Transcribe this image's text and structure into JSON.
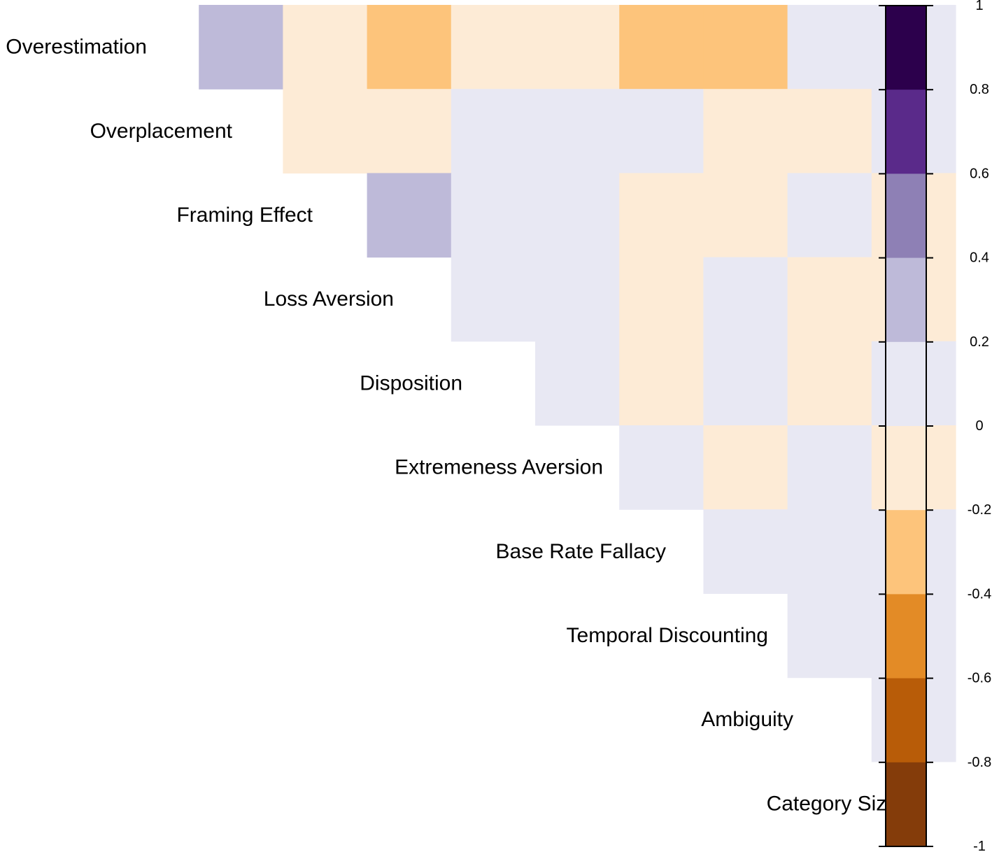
{
  "chart_data": {
    "type": "heatmap",
    "title": "",
    "variables": [
      "Overestimation",
      "Overplacement",
      "Framing Effect",
      "Loss Aversion",
      "Disposition",
      "Extremeness Aversion",
      "Base Rate Fallacy",
      "Temporal Discounting",
      "Ambiguity",
      "Category Size"
    ],
    "layout": "upper-triangle, diagonal cell holds the variable label",
    "cells": [
      {
        "row": 0,
        "col": 1,
        "value": 0.3
      },
      {
        "row": 0,
        "col": 2,
        "value": -0.1
      },
      {
        "row": 0,
        "col": 3,
        "value": -0.3
      },
      {
        "row": 0,
        "col": 4,
        "value": -0.1
      },
      {
        "row": 0,
        "col": 5,
        "value": -0.1
      },
      {
        "row": 0,
        "col": 6,
        "value": -0.3
      },
      {
        "row": 0,
        "col": 7,
        "value": -0.3
      },
      {
        "row": 0,
        "col": 8,
        "value": 0.1
      },
      {
        "row": 0,
        "col": 9,
        "value": 0.1
      },
      {
        "row": 1,
        "col": 2,
        "value": -0.1
      },
      {
        "row": 1,
        "col": 3,
        "value": -0.1
      },
      {
        "row": 1,
        "col": 4,
        "value": 0.1
      },
      {
        "row": 1,
        "col": 5,
        "value": 0.1
      },
      {
        "row": 1,
        "col": 6,
        "value": 0.1
      },
      {
        "row": 1,
        "col": 7,
        "value": -0.1
      },
      {
        "row": 1,
        "col": 8,
        "value": -0.1
      },
      {
        "row": 1,
        "col": 9,
        "value": 0.1
      },
      {
        "row": 2,
        "col": 3,
        "value": 0.3
      },
      {
        "row": 2,
        "col": 4,
        "value": 0.1
      },
      {
        "row": 2,
        "col": 5,
        "value": 0.1
      },
      {
        "row": 2,
        "col": 6,
        "value": -0.1
      },
      {
        "row": 2,
        "col": 7,
        "value": -0.1
      },
      {
        "row": 2,
        "col": 8,
        "value": 0.1
      },
      {
        "row": 2,
        "col": 9,
        "value": -0.1
      },
      {
        "row": 3,
        "col": 4,
        "value": 0.1
      },
      {
        "row": 3,
        "col": 5,
        "value": 0.1
      },
      {
        "row": 3,
        "col": 6,
        "value": -0.1
      },
      {
        "row": 3,
        "col": 7,
        "value": 0.1
      },
      {
        "row": 3,
        "col": 8,
        "value": -0.1
      },
      {
        "row": 3,
        "col": 9,
        "value": -0.1
      },
      {
        "row": 4,
        "col": 5,
        "value": 0.1
      },
      {
        "row": 4,
        "col": 6,
        "value": -0.1
      },
      {
        "row": 4,
        "col": 7,
        "value": 0.1
      },
      {
        "row": 4,
        "col": 8,
        "value": -0.1
      },
      {
        "row": 4,
        "col": 9,
        "value": 0.1
      },
      {
        "row": 5,
        "col": 6,
        "value": 0.1
      },
      {
        "row": 5,
        "col": 7,
        "value": -0.1
      },
      {
        "row": 5,
        "col": 8,
        "value": 0.1
      },
      {
        "row": 5,
        "col": 9,
        "value": -0.1
      },
      {
        "row": 6,
        "col": 7,
        "value": 0.1
      },
      {
        "row": 6,
        "col": 8,
        "value": 0.1
      },
      {
        "row": 6,
        "col": 9,
        "value": 0.1
      },
      {
        "row": 7,
        "col": 8,
        "value": 0.1
      },
      {
        "row": 7,
        "col": 9,
        "value": 0.1
      },
      {
        "row": 8,
        "col": 9,
        "value": 0.1
      }
    ],
    "color_scale": {
      "breaks": [
        -1,
        -0.8,
        -0.6,
        -0.4,
        -0.2,
        0,
        0.2,
        0.4,
        0.6,
        0.8,
        1
      ],
      "colors": [
        "#7f3b08",
        "#b35806",
        "#e08214",
        "#fdb863",
        "#fee0b6",
        "#d8daeb",
        "#b2abd2",
        "#8073ac",
        "#542788",
        "#2d004b"
      ],
      "cell_colors": [
        "#843c0a",
        "#b85c08",
        "#e38b26",
        "#fdc47b",
        "#fdebd6",
        "#e8e8f3",
        "#bebad9",
        "#8e80b5",
        "#5a2a8a",
        "#2c004c"
      ],
      "tick_labels": [
        "1",
        "0.8",
        "0.6",
        "0.4",
        "0.2",
        "0",
        "-0.2",
        "-0.4",
        "-0.6",
        "-0.8",
        "-1"
      ],
      "legend_position": "right"
    }
  }
}
